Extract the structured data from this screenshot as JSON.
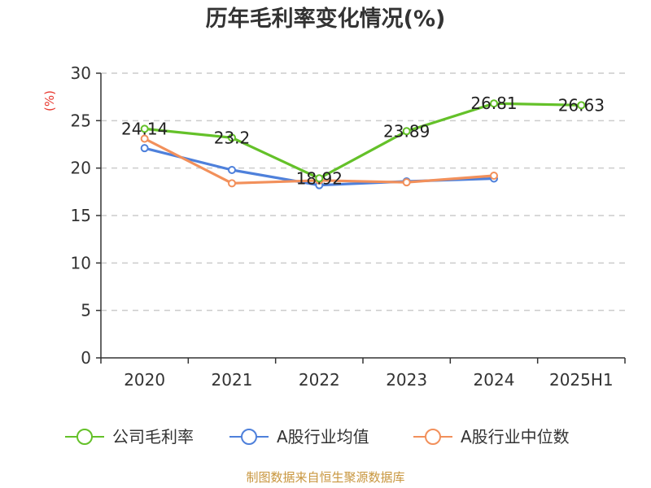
{
  "colors": {
    "company": "#64c129",
    "average": "#4e80db",
    "median": "#f2905b",
    "grid": "#cccccc",
    "axis": "#333333",
    "unit": "#e8382f",
    "source": "#c8963e"
  },
  "chart_data": {
    "type": "line",
    "title": "历年毛利率变化情况(%)",
    "ylabel": "(%)",
    "xlabel": "",
    "categories": [
      "2020",
      "2021",
      "2022",
      "2023",
      "2024",
      "2025H1"
    ],
    "ylim": [
      0,
      30
    ],
    "yticks": [
      "0",
      "5",
      "10",
      "15",
      "20",
      "25",
      "30"
    ],
    "grid": true,
    "legend_position": "bottom",
    "series": [
      {
        "name": "公司毛利率",
        "color_key": "company",
        "values": [
          24.14,
          23.2,
          18.92,
          23.89,
          26.81,
          26.63
        ],
        "labels": [
          "24.14",
          "23.2",
          "18.92",
          "23.89",
          "26.81",
          "26.63"
        ]
      },
      {
        "name": "A股行业均值",
        "color_key": "average",
        "values": [
          22.1,
          19.8,
          18.2,
          18.6,
          18.9,
          null
        ]
      },
      {
        "name": "A股行业中位数",
        "color_key": "median",
        "values": [
          23.1,
          18.4,
          18.7,
          18.5,
          19.2,
          null
        ]
      }
    ],
    "source": "制图数据来自恒生聚源数据库"
  }
}
